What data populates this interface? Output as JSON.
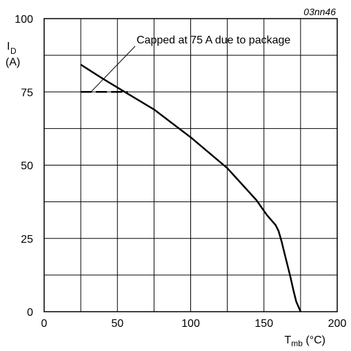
{
  "chart_data": {
    "type": "line",
    "figure_id": "03nn46",
    "title": "",
    "ylabel": {
      "main": "I",
      "sub": "D",
      "unit": "(A)"
    },
    "xlabel": {
      "main": "T",
      "sub": "mb",
      "unit": " (°C)"
    },
    "xlim": [
      0,
      200
    ],
    "ylim": [
      0,
      100
    ],
    "x_ticks": [
      0,
      50,
      100,
      150,
      200
    ],
    "y_ticks": [
      0,
      25,
      50,
      75,
      100
    ],
    "x_grid_step": 25,
    "y_grid_step": 12.5,
    "grid": true,
    "legend": "none",
    "series": [
      {
        "style": "solid",
        "x": [
          25,
          40,
          55,
          75,
          100,
          125,
          145,
          152,
          158,
          160,
          162,
          165,
          168,
          170,
          172,
          175
        ],
        "y": [
          84.3,
          79.5,
          75,
          69,
          59.5,
          49,
          38,
          33,
          29.5,
          27.5,
          24,
          18,
          12,
          7.5,
          3.5,
          0
        ]
      },
      {
        "style": "dashed",
        "x": [
          25,
          57
        ],
        "y": [
          75,
          75
        ]
      }
    ],
    "annotations": [
      {
        "text": "Capped at 75 A due to package",
        "pointer_to": {
          "x": 32,
          "y": 75
        }
      }
    ]
  }
}
